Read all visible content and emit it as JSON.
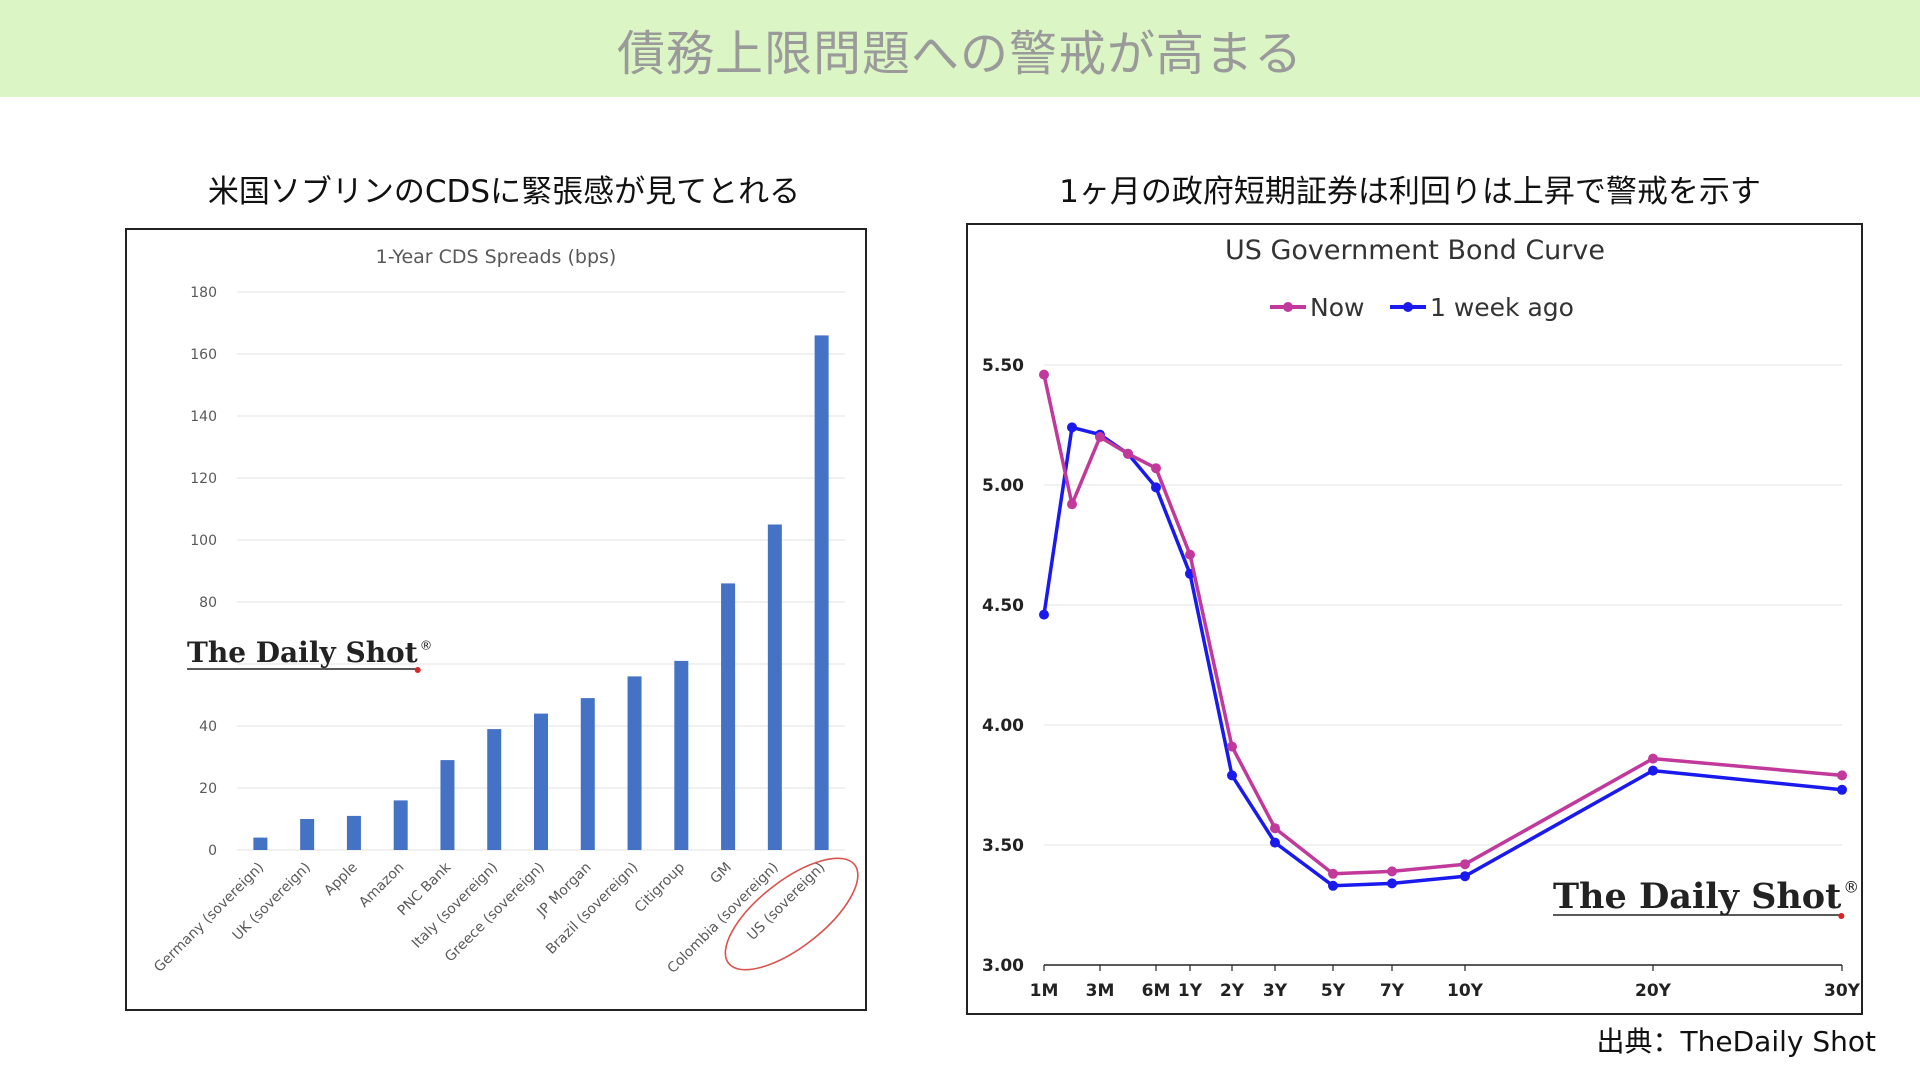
{
  "banner": {
    "title": "債務上限問題への警戒が高まる"
  },
  "left_subtitle": "米国ソブリンのCDSに緊張感が見てとれる",
  "right_subtitle": "1ヶ月の政府短期証券は利回りは上昇で警戒を示す",
  "source_note": "出典：TheDaily Shot",
  "watermark": "The Daily Shot",
  "watermark_mark": "®",
  "colors": {
    "banner_bg": "#dbf5c4",
    "bar": "#4472c4",
    "now": "#c0399b",
    "week_ago": "#1a1aef",
    "highlight": "#d9534f"
  },
  "chart_data": [
    {
      "type": "bar",
      "title": "1-Year CDS Spreads (bps)",
      "categories": [
        "Germany (sovereign)",
        "UK (sovereign)",
        "Apple",
        "Amazon",
        "PNC Bank",
        "Italy (sovereign)",
        "Greece (sovereign)",
        "JP Morgan",
        "Brazil (sovereign)",
        "Citigroup",
        "GM",
        "Colombia (sovereign)",
        "US (sovereign)"
      ],
      "values": [
        4,
        10,
        11,
        16,
        29,
        39,
        44,
        49,
        56,
        61,
        86,
        105,
        166
      ],
      "ylim": [
        0,
        180
      ],
      "yticks": [
        0,
        20,
        40,
        60,
        80,
        100,
        120,
        140,
        160,
        180
      ],
      "ytick_labels_shown": [
        "0",
        "20",
        "40",
        "80",
        "100",
        "120",
        "140",
        "160",
        "180"
      ],
      "highlighted_category": "US (sovereign)",
      "grid": true
    },
    {
      "type": "line",
      "title": "US Government Bond Curve",
      "x_labels": [
        "1M",
        "3M",
        "6M",
        "1Y",
        "2Y",
        "3Y",
        "5Y",
        "7Y",
        "10Y",
        "20Y",
        "30Y"
      ],
      "maturities_months": [
        1,
        2,
        3,
        4,
        6,
        12,
        24,
        36,
        60,
        84,
        120,
        240,
        360
      ],
      "ylim": [
        3.0,
        5.5
      ],
      "yticks": [
        "3.00",
        "3.50",
        "4.00",
        "4.50",
        "5.00",
        "5.50"
      ],
      "legend_position": "top-center",
      "series": [
        {
          "name": "Now",
          "values": [
            5.46,
            4.92,
            5.2,
            5.13,
            5.07,
            4.71,
            3.91,
            3.57,
            3.38,
            3.39,
            3.42,
            3.86,
            3.79
          ]
        },
        {
          "name": "1 week ago",
          "values": [
            4.46,
            5.24,
            5.21,
            5.13,
            4.99,
            4.63,
            3.79,
            3.51,
            3.33,
            3.34,
            3.37,
            3.81,
            3.73
          ]
        }
      ],
      "grid": true
    }
  ]
}
